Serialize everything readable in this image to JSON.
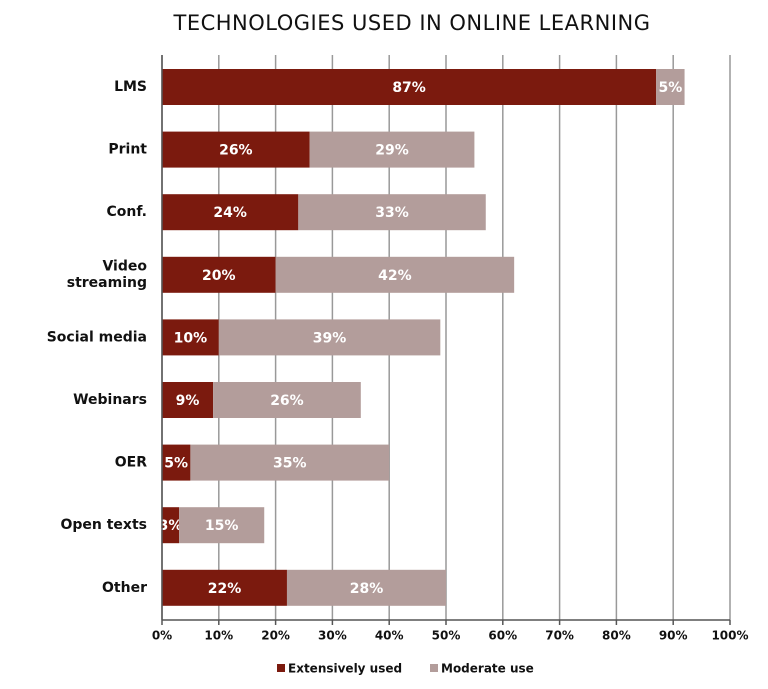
{
  "chart_data": {
    "type": "stacked-bar-horizontal",
    "title": "TECHNOLOGIES USED IN ONLINE LEARNING",
    "categories": [
      "LMS",
      "Print",
      "Conf.",
      "Video\nstreaming",
      "Social media",
      "Webinars",
      "OER",
      "Open texts",
      "Other"
    ],
    "series": [
      {
        "name": "Extensively used",
        "color": "#7b1a0e",
        "values": [
          87,
          26,
          24,
          20,
          10,
          9,
          5,
          3,
          22
        ],
        "value_labels": [
          "87%",
          "26%",
          "24%",
          "20%",
          "10%",
          "9%",
          "5%",
          "3%",
          "22%"
        ]
      },
      {
        "name": "Moderate use",
        "color": "#b39d9b",
        "values": [
          5,
          29,
          33,
          42,
          39,
          26,
          35,
          15,
          28
        ],
        "value_labels": [
          "5%",
          "29%",
          "33%",
          "42%",
          "39%",
          "26%",
          "35%",
          "15%",
          "28%"
        ]
      }
    ],
    "xlim": [
      0,
      100
    ],
    "xticks": [
      {
        "value": 0,
        "label": "0%"
      },
      {
        "value": 10,
        "label": "10%"
      },
      {
        "value": 20,
        "label": "20%"
      },
      {
        "value": 30,
        "label": "30%"
      },
      {
        "value": 40,
        "label": "40%"
      },
      {
        "value": 50,
        "label": "50%"
      },
      {
        "value": 60,
        "label": "60%"
      },
      {
        "value": 70,
        "label": "70%"
      },
      {
        "value": 80,
        "label": "80%"
      },
      {
        "value": 90,
        "label": "90%"
      },
      {
        "value": 100,
        "label": "100%"
      }
    ],
    "grid": true,
    "legend": "bottom"
  }
}
